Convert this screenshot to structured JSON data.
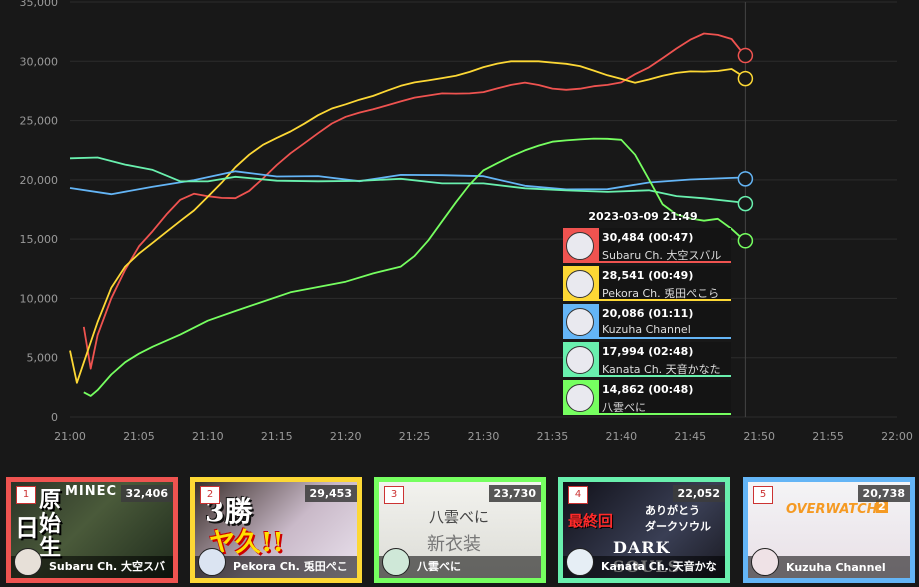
{
  "chart_data": {
    "type": "line",
    "x_axis": {
      "ticks": [
        "21:00",
        "21:05",
        "21:10",
        "21:15",
        "21:20",
        "21:25",
        "21:30",
        "21:35",
        "21:40",
        "21:45",
        "21:50",
        "21:55",
        "22:00"
      ],
      "range": [
        "21:00",
        "22:00"
      ]
    },
    "y_axis": {
      "ticks": [
        "0",
        "5,000",
        "10,000",
        "15,000",
        "20,000",
        "25,000",
        "30,000",
        "35,000"
      ],
      "range": [
        0,
        35000
      ]
    },
    "grid": true,
    "series": [
      {
        "name": "Subaru Ch. 大空スバル",
        "color": "#ef5350",
        "points": [
          [
            1,
            7500
          ],
          [
            1.5,
            4200
          ],
          [
            2,
            6800
          ],
          [
            3,
            10000
          ],
          [
            4,
            12500
          ],
          [
            5,
            14500
          ],
          [
            6,
            15700
          ],
          [
            7,
            17000
          ],
          [
            8,
            18200
          ],
          [
            9,
            18800
          ],
          [
            10,
            18700
          ],
          [
            11,
            18600
          ],
          [
            12,
            18500
          ],
          [
            13,
            19000
          ],
          [
            14,
            20000
          ],
          [
            15,
            21200
          ],
          [
            16,
            22300
          ],
          [
            17,
            23200
          ],
          [
            18,
            24000
          ],
          [
            19,
            24700
          ],
          [
            20,
            25200
          ],
          [
            21,
            25600
          ],
          [
            22,
            26000
          ],
          [
            23,
            26400
          ],
          [
            24,
            26700
          ],
          [
            25,
            26900
          ],
          [
            26,
            27000
          ],
          [
            27,
            27200
          ],
          [
            28,
            27300
          ],
          [
            29,
            27400
          ],
          [
            30,
            27500
          ],
          [
            31,
            27700
          ],
          [
            32,
            27900
          ],
          [
            33,
            28100
          ],
          [
            34,
            28000
          ],
          [
            35,
            27800
          ],
          [
            36,
            27700
          ],
          [
            37,
            27700
          ],
          [
            38,
            27800
          ],
          [
            39,
            27900
          ],
          [
            40,
            28200
          ],
          [
            41,
            29000
          ],
          [
            42,
            29600
          ],
          [
            43,
            30300
          ],
          [
            44,
            31000
          ],
          [
            45,
            31700
          ],
          [
            46,
            32300
          ],
          [
            47,
            32300
          ],
          [
            48,
            32000
          ],
          [
            49,
            30484
          ]
        ]
      },
      {
        "name": "Pekora Ch. 兎田ぺこら",
        "color": "#fdd835",
        "points": [
          [
            0,
            5500
          ],
          [
            0.5,
            3000
          ],
          [
            1,
            4500
          ],
          [
            2,
            8000
          ],
          [
            3,
            11000
          ],
          [
            4,
            12800
          ],
          [
            5,
            13800
          ],
          [
            6,
            14600
          ],
          [
            7,
            15500
          ],
          [
            8,
            16500
          ],
          [
            9,
            17500
          ],
          [
            10,
            18700
          ],
          [
            11,
            19800
          ],
          [
            12,
            21000
          ],
          [
            13,
            22000
          ],
          [
            14,
            22900
          ],
          [
            15,
            23600
          ],
          [
            16,
            24200
          ],
          [
            17,
            24800
          ],
          [
            18,
            25400
          ],
          [
            19,
            25900
          ],
          [
            20,
            26300
          ],
          [
            21,
            26800
          ],
          [
            22,
            27200
          ],
          [
            23,
            27600
          ],
          [
            24,
            27900
          ],
          [
            25,
            28100
          ],
          [
            26,
            28300
          ],
          [
            27,
            28600
          ],
          [
            28,
            28900
          ],
          [
            29,
            29200
          ],
          [
            30,
            29500
          ],
          [
            31,
            29700
          ],
          [
            32,
            29900
          ],
          [
            33,
            30000
          ],
          [
            34,
            30100
          ],
          [
            35,
            30000
          ],
          [
            36,
            29800
          ],
          [
            37,
            29500
          ],
          [
            38,
            29100
          ],
          [
            39,
            28800
          ],
          [
            40,
            28600
          ],
          [
            41,
            28300
          ],
          [
            42,
            28500
          ],
          [
            43,
            28700
          ],
          [
            44,
            28900
          ],
          [
            45,
            29100
          ],
          [
            46,
            29200
          ],
          [
            47,
            29300
          ],
          [
            48,
            29400
          ],
          [
            49,
            28541
          ]
        ]
      },
      {
        "name": "Kuzuha Channel",
        "color": "#64b5f6",
        "points": [
          [
            0,
            19200
          ],
          [
            3,
            18900
          ],
          [
            6,
            19300
          ],
          [
            9,
            20100
          ],
          [
            12,
            20600
          ],
          [
            15,
            20400
          ],
          [
            18,
            20200
          ],
          [
            21,
            20000
          ],
          [
            24,
            20300
          ],
          [
            27,
            20500
          ],
          [
            30,
            20200
          ],
          [
            33,
            19600
          ],
          [
            36,
            19100
          ],
          [
            39,
            19300
          ],
          [
            42,
            19700
          ],
          [
            45,
            20100
          ],
          [
            49,
            20086
          ]
        ]
      },
      {
        "name": "Kanata Ch. 天音かなた",
        "color": "#69f0ae",
        "points": [
          [
            0,
            21800
          ],
          [
            2,
            22000
          ],
          [
            4,
            21200
          ],
          [
            6,
            20800
          ],
          [
            8,
            20000
          ],
          [
            10,
            19800
          ],
          [
            12,
            20200
          ],
          [
            15,
            20000
          ],
          [
            18,
            19800
          ],
          [
            21,
            20000
          ],
          [
            24,
            20000
          ],
          [
            27,
            19800
          ],
          [
            30,
            19600
          ],
          [
            33,
            19400
          ],
          [
            36,
            19000
          ],
          [
            39,
            19100
          ],
          [
            42,
            19000
          ],
          [
            44,
            18700
          ],
          [
            46,
            18500
          ],
          [
            49,
            17994
          ]
        ]
      },
      {
        "name": "八雲べに",
        "color": "#76ff60",
        "points": [
          [
            1,
            2200
          ],
          [
            1.5,
            1700
          ],
          [
            2,
            2300
          ],
          [
            3,
            3500
          ],
          [
            4,
            4500
          ],
          [
            5,
            5300
          ],
          [
            6,
            6000
          ],
          [
            8,
            7000
          ],
          [
            10,
            8000
          ],
          [
            12,
            9000
          ],
          [
            14,
            9800
          ],
          [
            16,
            10400
          ],
          [
            18,
            11000
          ],
          [
            20,
            11500
          ],
          [
            22,
            12000
          ],
          [
            24,
            12700
          ],
          [
            25,
            13700
          ],
          [
            26,
            15000
          ],
          [
            27,
            16500
          ],
          [
            28,
            18000
          ],
          [
            29,
            19500
          ],
          [
            30,
            20800
          ],
          [
            31,
            21500
          ],
          [
            32,
            22100
          ],
          [
            33,
            22500
          ],
          [
            34,
            22800
          ],
          [
            35,
            23100
          ],
          [
            36,
            23300
          ],
          [
            37,
            23500
          ],
          [
            38,
            23600
          ],
          [
            39,
            23500
          ],
          [
            40,
            23300
          ],
          [
            41,
            22000
          ],
          [
            42,
            20000
          ],
          [
            43,
            18000
          ],
          [
            44,
            17200
          ],
          [
            45,
            16800
          ],
          [
            46,
            16500
          ],
          [
            47,
            16600
          ],
          [
            48,
            15800
          ],
          [
            49,
            14862
          ]
        ]
      }
    ]
  },
  "tooltip": {
    "time": "2023-03-09 21:49",
    "rows": [
      {
        "value": "30,484 (00:47)",
        "name": "Subaru Ch. 大空スバル",
        "color": "#ef5350"
      },
      {
        "value": "28,541 (00:49)",
        "name": "Pekora Ch. 兎田ぺこら",
        "color": "#fdd835"
      },
      {
        "value": "20,086 (01:11)",
        "name": "Kuzuha Channel",
        "color": "#64b5f6"
      },
      {
        "value": "17,994 (02:48)",
        "name": "Kanata Ch. 天音かなた",
        "color": "#69f0ae"
      },
      {
        "value": "14,862 (00:48)",
        "name": "八雲べに",
        "color": "#76ff60"
      }
    ]
  },
  "cards": [
    {
      "rank": "1",
      "viewers": "32,406",
      "name": "Subaru Ch. 大空スバ",
      "border": "#ef5350",
      "thumb_texts": [
        "原",
        "始",
        "生",
        "日",
        "MINEC"
      ]
    },
    {
      "rank": "2",
      "viewers": "29,453",
      "name": "Pekora Ch. 兎田ぺこ",
      "border": "#fdd835",
      "thumb_texts": [
        "3勝",
        "ヤ久!!"
      ]
    },
    {
      "rank": "3",
      "viewers": "23,730",
      "name": "八雲べに",
      "border": "#76ff60",
      "thumb_texts": [
        "八雲べに",
        "新衣装"
      ]
    },
    {
      "rank": "4",
      "viewers": "22,052",
      "name": "Kanata Ch. 天音かな",
      "border": "#69f0ae",
      "thumb_texts": [
        "最終回",
        "ありがとう",
        "ダークソウル",
        "DARK SOULS"
      ]
    },
    {
      "rank": "5",
      "viewers": "20,738",
      "name": "Kuzuha Channel",
      "border": "#64b5f6",
      "thumb_texts": [
        "OVERWATCH",
        "2"
      ]
    }
  ]
}
